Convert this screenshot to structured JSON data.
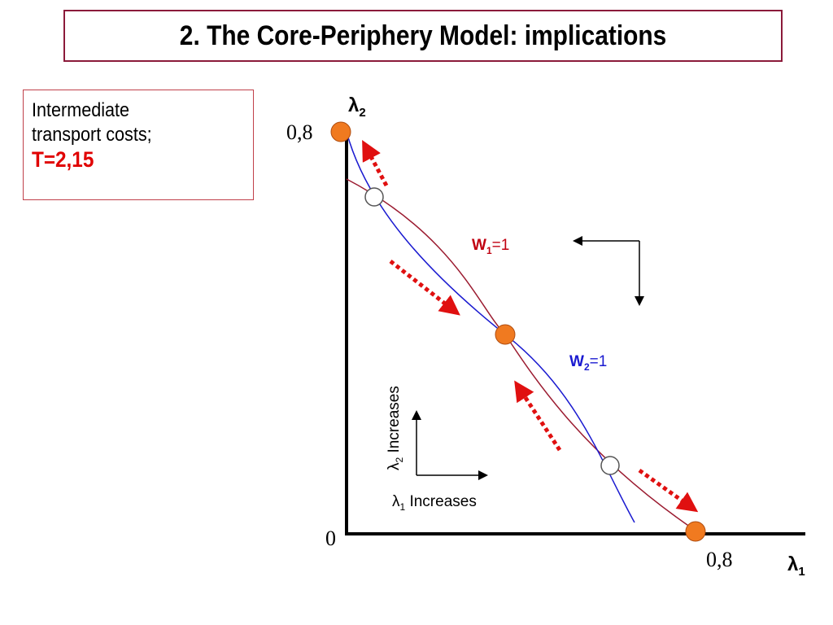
{
  "title": "2. The Core-Periphery Model: implications",
  "info": {
    "line1": "Intermediate",
    "line2": "transport costs;",
    "line3": "T=2,15"
  },
  "axes": {
    "y_symbol": "λ",
    "y_sub": "2",
    "x_symbol": "λ",
    "x_sub": "1",
    "y_max_label": "0,8",
    "x_max_label": "0,8",
    "origin_label": "0"
  },
  "curves": {
    "w1_label": "W",
    "w1_sub": "1",
    "w1_eq": "=1",
    "w2_label": "W",
    "w2_sub": "2",
    "w2_eq": "=1"
  },
  "legend": {
    "lambda2": "λ",
    "lambda2_sub": "2",
    "lambda2_text": " Increases",
    "lambda1": "λ",
    "lambda1_sub": "1",
    "lambda1_text": " Increases"
  },
  "colors": {
    "border": "#8b1a3a",
    "w1_curve": "#9b1b30",
    "w2_curve": "#1a1ad0",
    "stable_point": "#f07a20",
    "arrow": "#e01010"
  }
}
